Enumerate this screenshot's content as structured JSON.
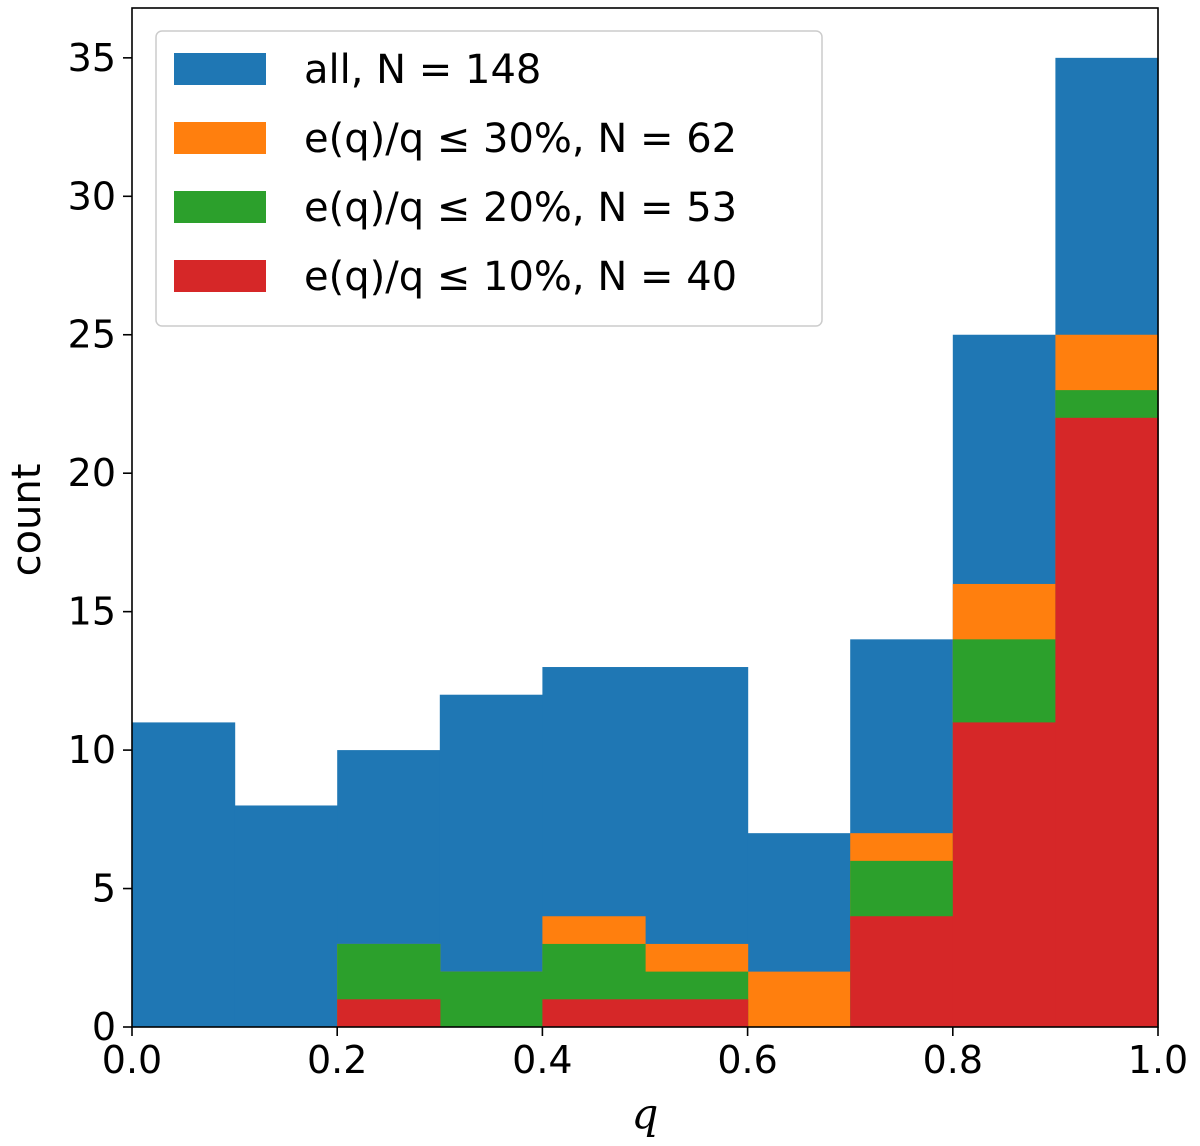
{
  "chart_data": {
    "type": "bar",
    "subtype": "stacked-overlay-histogram",
    "title": "",
    "xlabel": "q",
    "ylabel": "count",
    "xlim": [
      0.0,
      1.0
    ],
    "ylim": [
      0,
      36.8
    ],
    "xticks": [
      "0.0",
      "0.2",
      "0.4",
      "0.6",
      "0.8",
      "1.0"
    ],
    "yticks": [
      "0",
      "5",
      "10",
      "15",
      "20",
      "25",
      "30",
      "35"
    ],
    "bin_edges": [
      0.0,
      0.1,
      0.2,
      0.3,
      0.4,
      0.5,
      0.6,
      0.7,
      0.8,
      0.9,
      1.0
    ],
    "grid": false,
    "legend_position": "top-left",
    "series": [
      {
        "name": "all, N = 148",
        "color": "#1f77b4",
        "values": [
          11,
          8,
          10,
          12,
          13,
          13,
          7,
          14,
          25,
          35
        ]
      },
      {
        "name": "e(q)/q ≤  30%, N = 62",
        "color": "#ff7f0e",
        "values": [
          0,
          0,
          3,
          2,
          4,
          3,
          2,
          7,
          16,
          25
        ]
      },
      {
        "name": "e(q)/q ≤  20%, N = 53",
        "color": "#2ca02c",
        "values": [
          0,
          0,
          3,
          2,
          3,
          2,
          0,
          6,
          14,
          23
        ]
      },
      {
        "name": "e(q)/q ≤  10%, N = 40",
        "color": "#d62728",
        "values": [
          0,
          0,
          1,
          0,
          1,
          1,
          0,
          4,
          11,
          22
        ]
      }
    ]
  }
}
